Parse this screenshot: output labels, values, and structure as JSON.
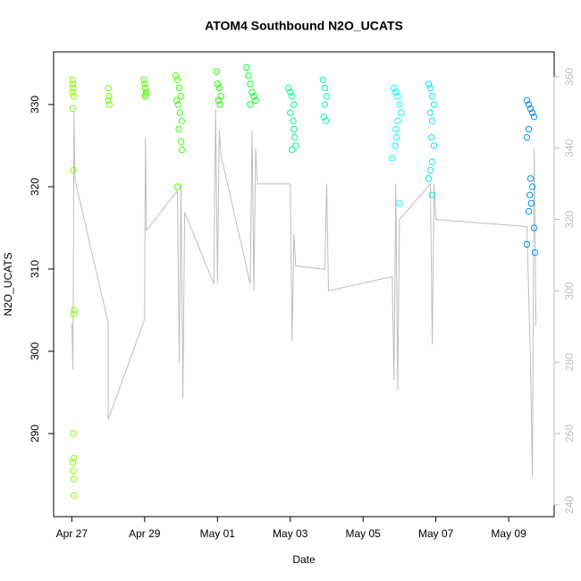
{
  "chart_data": {
    "type": "scatter",
    "title": "ATOM4 Southbound N2O_UCATS",
    "xlabel": "Date",
    "ylabel": "N2O_UCATS",
    "xlim": [
      -0.5,
      13.25
    ],
    "xticks": [
      {
        "value": 0,
        "label": "Apr 27"
      },
      {
        "value": 2,
        "label": "Apr 29"
      },
      {
        "value": 4,
        "label": "May 01"
      },
      {
        "value": 6,
        "label": "May 03"
      },
      {
        "value": 8,
        "label": "May 05"
      },
      {
        "value": 10,
        "label": "May 07"
      },
      {
        "value": 12,
        "label": "May 09"
      }
    ],
    "ylim": [
      279.9,
      336.4
    ],
    "yticks": [
      290,
      300,
      310,
      320,
      330
    ],
    "y2lim": [
      236.7,
      367
    ],
    "y2ticks": [
      240,
      260,
      280,
      300,
      320,
      340,
      360
    ],
    "y2color": "#bebebe",
    "series": [
      {
        "color": "#80ff00",
        "x": [
          0.02,
          0.03,
          0.04,
          0.02,
          0.05,
          0.03,
          0.04,
          0.06,
          0.05,
          0.04,
          0.05,
          0.03,
          0.04,
          0.05,
          0.06
        ],
        "values": [
          333,
          332.5,
          332,
          331.5,
          331,
          329.5,
          322,
          305,
          304.5,
          290,
          287,
          286.5,
          285.5,
          284.5,
          282.5
        ]
      },
      {
        "color": "#70ff00",
        "x": [
          1.0,
          1.02,
          1.0,
          1.03
        ],
        "values": [
          332,
          331,
          330.5,
          330
        ]
      },
      {
        "color": "#50ff00",
        "x": [
          1.98,
          2.0,
          2.02,
          2.04,
          2.01,
          2.03
        ],
        "values": [
          333,
          332.5,
          332,
          331.5,
          331,
          331.2
        ]
      },
      {
        "color": "#40ff00",
        "x": [
          2.85,
          2.9,
          2.95,
          3.0,
          2.88,
          2.92,
          2.97,
          3.02,
          2.94,
          3.0,
          3.02,
          2.9
        ],
        "values": [
          333.5,
          333,
          332,
          331,
          330.5,
          330,
          329,
          328,
          327,
          325.5,
          324.5,
          320
        ]
      },
      {
        "color": "#20ff00",
        "x": [
          3.98,
          4.0,
          4.05,
          4.1,
          4.03,
          4.07
        ],
        "values": [
          334,
          332.5,
          332,
          331,
          330.5,
          330
        ]
      },
      {
        "color": "#00ff20",
        "x": [
          4.8,
          4.85,
          4.9,
          4.95,
          5.0,
          5.05,
          4.9
        ],
        "values": [
          334.5,
          333.5,
          332.5,
          331.5,
          331,
          330.5,
          330
        ]
      },
      {
        "color": "#00ff80",
        "x": [
          5.95,
          6.0,
          6.05,
          6.1,
          6.0,
          6.08,
          6.1,
          6.12,
          6.15,
          6.05
        ],
        "values": [
          332,
          331.5,
          331,
          330,
          329,
          328,
          327,
          326,
          325,
          324.5
        ]
      },
      {
        "color": "#00ffa0",
        "x": [
          6.9,
          6.95,
          7.0,
          6.95,
          6.92,
          6.98
        ],
        "values": [
          333,
          332,
          331,
          330,
          328.5,
          328
        ]
      },
      {
        "color": "#00ffff",
        "x": [
          8.85,
          8.9,
          8.95,
          9.0,
          9.05,
          8.95,
          8.9,
          8.92,
          8.88,
          8.8,
          9.0
        ],
        "values": [
          332,
          331.5,
          331,
          330,
          329,
          328,
          327,
          326,
          325,
          323.5,
          318
        ]
      },
      {
        "color": "#00e8ff",
        "x": [
          9.8,
          9.85,
          9.9,
          9.95,
          9.85,
          9.9,
          9.88,
          9.95,
          9.9,
          9.85,
          9.8,
          9.9
        ],
        "values": [
          332.5,
          332,
          331,
          330,
          329,
          328,
          326,
          325,
          323,
          322,
          321,
          319
        ]
      },
      {
        "color": "#0090ff",
        "x": [
          12.5,
          12.55,
          12.6,
          12.65,
          12.7,
          12.55,
          12.5,
          12.6,
          12.65,
          12.58,
          12.62,
          12.55,
          12.7,
          12.5,
          12.72
        ],
        "values": [
          330.5,
          330,
          329.5,
          329,
          328.5,
          327,
          326,
          321,
          320,
          319,
          318,
          317,
          315,
          313,
          312
        ]
      },
      {
        "color": "#bebebe",
        "axis": "y2",
        "line": true,
        "x": [
          0,
          0.03,
          0.06,
          0.09,
          1.0,
          1.0,
          2.0,
          2.02,
          2.05,
          2.9,
          2.95,
          3.0,
          3.05,
          3.1,
          3.9,
          3.95,
          4.0,
          4.05,
          4.1,
          4.9,
          4.95,
          5.0,
          5.05,
          5.1,
          5.9,
          6.0,
          6.05,
          6.1,
          6.15,
          6.95,
          7.0,
          7.05,
          8.8,
          8.85,
          8.9,
          8.95,
          9.0,
          9.85,
          9.9,
          9.95,
          10.0,
          12.5,
          12.6,
          12.65,
          12.7,
          12.75
        ],
        "values": [
          291,
          278,
          350,
          331,
          291,
          264,
          292,
          343,
          317,
          328,
          280,
          330,
          270,
          322,
          302,
          351,
          302,
          345,
          338,
          302,
          345,
          300,
          340,
          330,
          330,
          330,
          286,
          316,
          307,
          306,
          330,
          300,
          304,
          275,
          330,
          272,
          320,
          330,
          285,
          330,
          320,
          318,
          280,
          248,
          340,
          290
        ]
      }
    ]
  }
}
